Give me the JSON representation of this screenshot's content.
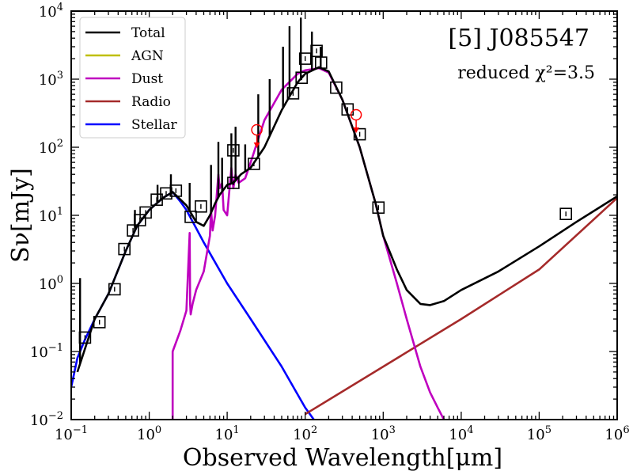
{
  "chart_data": {
    "type": "line",
    "title": "[5] J085547",
    "subtitle": "reduced χ²=3.5",
    "xlabel": "Observed Wavelength[μm]",
    "ylabel": "Sν[mJy]",
    "xscale": "log",
    "yscale": "log",
    "xlim": [
      0.1,
      1000000
    ],
    "ylim": [
      0.01,
      10000
    ],
    "x_ticks": [
      {
        "value": 0.1,
        "base": "10",
        "exp": "−1"
      },
      {
        "value": 1,
        "base": "10",
        "exp": "0"
      },
      {
        "value": 10,
        "base": "10",
        "exp": "1"
      },
      {
        "value": 100,
        "base": "10",
        "exp": "2"
      },
      {
        "value": 1000,
        "base": "10",
        "exp": "3"
      },
      {
        "value": 10000,
        "base": "10",
        "exp": "4"
      },
      {
        "value": 100000,
        "base": "10",
        "exp": "5"
      },
      {
        "value": 1000000,
        "base": "10",
        "exp": "6"
      }
    ],
    "y_ticks": [
      {
        "value": 0.01,
        "base": "10",
        "exp": "−2"
      },
      {
        "value": 0.1,
        "base": "10",
        "exp": "−1"
      },
      {
        "value": 1,
        "base": "10",
        "exp": "0"
      },
      {
        "value": 10,
        "base": "10",
        "exp": "1"
      },
      {
        "value": 100,
        "base": "10",
        "exp": "2"
      },
      {
        "value": 1000,
        "base": "10",
        "exp": "3"
      },
      {
        "value": 10000,
        "base": "10",
        "exp": "4"
      }
    ],
    "legend_position": "top-left",
    "legend": [
      {
        "name": "Total",
        "color": "#000000"
      },
      {
        "name": "AGN",
        "color": "#bfbf00"
      },
      {
        "name": "Dust",
        "color": "#bf00bf"
      },
      {
        "name": "Radio",
        "color": "#a52a2a"
      },
      {
        "name": "Stellar",
        "color": "#0000ff"
      }
    ],
    "series": [
      {
        "name": "Total",
        "color": "#000000",
        "x": [
          0.12,
          0.2,
          0.3,
          0.5,
          0.7,
          1.0,
          1.5,
          2.0,
          3.0,
          4.0,
          5.0,
          6.0,
          7.0,
          8.0,
          10,
          12,
          15,
          20,
          30,
          50,
          80,
          100,
          150,
          200,
          300,
          500,
          800,
          1000,
          1500,
          2000,
          3000,
          4000,
          6000,
          10000,
          30000,
          100000,
          300000,
          1000000
        ],
        "y": [
          0.05,
          0.3,
          0.7,
          3.0,
          7.0,
          12,
          18,
          22,
          14,
          8,
          7,
          10,
          15,
          20,
          28,
          30,
          40,
          50,
          100,
          350,
          900,
          1200,
          1500,
          1300,
          500,
          100,
          15,
          5,
          1.6,
          0.8,
          0.5,
          0.48,
          0.55,
          0.8,
          1.5,
          3.5,
          8,
          19
        ],
        "spikes": [
          {
            "x": 0.13,
            "y": 1.2
          },
          {
            "x": 0.656,
            "y": 12
          },
          {
            "x": 1.28,
            "y": 28
          },
          {
            "x": 1.9,
            "y": 40
          },
          {
            "x": 3.3,
            "y": 30
          },
          {
            "x": 6.2,
            "y": 55
          },
          {
            "x": 7.7,
            "y": 120
          },
          {
            "x": 8.6,
            "y": 70
          },
          {
            "x": 11.3,
            "y": 160
          },
          {
            "x": 12.8,
            "y": 200
          },
          {
            "x": 17,
            "y": 110
          },
          {
            "x": 25,
            "y": 600
          },
          {
            "x": 35,
            "y": 1000
          },
          {
            "x": 52,
            "y": 3000
          },
          {
            "x": 63,
            "y": 6000
          },
          {
            "x": 88,
            "y": 8000
          },
          {
            "x": 122,
            "y": 5000
          },
          {
            "x": 158,
            "y": 3000
          }
        ]
      },
      {
        "name": "Dust",
        "color": "#bf00bf",
        "x": [
          2.0,
          2.0,
          2.5,
          3.0,
          3.3,
          3.35,
          3.4,
          3.6,
          4.0,
          5.0,
          6.0,
          6.2,
          6.5,
          7.0,
          7.7,
          8.0,
          8.6,
          9.0,
          10,
          11.3,
          12,
          12.8,
          14,
          17,
          20,
          30,
          50,
          80,
          100,
          150,
          200,
          300,
          500,
          800,
          1000,
          1500,
          2000,
          3000,
          4000,
          5000,
          6000
        ],
        "y": [
          0.01,
          0.1,
          0.2,
          0.4,
          5.5,
          0.5,
          0.35,
          0.5,
          0.8,
          1.5,
          5,
          12,
          6,
          10,
          40,
          25,
          30,
          12,
          10,
          50,
          25,
          40,
          30,
          35,
          60,
          250,
          700,
          1200,
          1350,
          1450,
          1250,
          500,
          100,
          15,
          5,
          1.0,
          0.3,
          0.06,
          0.025,
          0.015,
          0.01
        ]
      },
      {
        "name": "Stellar",
        "color": "#0000ff",
        "x": [
          0.1,
          0.12,
          0.15,
          0.2,
          0.3,
          0.5,
          0.7,
          1.0,
          1.5,
          2.0,
          2.5,
          3.0,
          5.0,
          10,
          20,
          50,
          100,
          200
        ],
        "y": [
          0.03,
          0.08,
          0.15,
          0.3,
          0.7,
          3.0,
          7.0,
          12,
          18,
          22,
          16,
          12,
          4,
          1.0,
          0.3,
          0.06,
          0.015,
          0.005
        ]
      },
      {
        "name": "Radio",
        "color": "#a52a2a",
        "x": [
          100,
          1000,
          10000,
          100000,
          1000000
        ],
        "y": [
          0.012,
          0.06,
          0.3,
          1.6,
          18
        ]
      }
    ],
    "photometry": {
      "marker": "open-square",
      "points": [
        {
          "x": 0.15,
          "y": 0.16
        },
        {
          "x": 0.23,
          "y": 0.27
        },
        {
          "x": 0.36,
          "y": 0.82
        },
        {
          "x": 0.48,
          "y": 3.2
        },
        {
          "x": 0.62,
          "y": 6.0
        },
        {
          "x": 0.76,
          "y": 8.5
        },
        {
          "x": 0.9,
          "y": 11
        },
        {
          "x": 1.25,
          "y": 17
        },
        {
          "x": 1.65,
          "y": 21
        },
        {
          "x": 2.2,
          "y": 23
        },
        {
          "x": 3.4,
          "y": 9.5
        },
        {
          "x": 4.6,
          "y": 13.5
        },
        {
          "x": 12,
          "y": 90
        },
        {
          "x": 12,
          "y": 30
        },
        {
          "x": 22,
          "y": 57
        },
        {
          "x": 70,
          "y": 620
        },
        {
          "x": 90,
          "y": 1050
        },
        {
          "x": 100,
          "y": 2000
        },
        {
          "x": 140,
          "y": 2600
        },
        {
          "x": 160,
          "y": 1750
        },
        {
          "x": 250,
          "y": 750
        },
        {
          "x": 350,
          "y": 360
        },
        {
          "x": 500,
          "y": 155
        },
        {
          "x": 870,
          "y": 13
        },
        {
          "x": 220000,
          "y": 10.5
        }
      ]
    },
    "upper_limits": {
      "marker": "open-circle-with-arrow",
      "color": "#ff0000",
      "points": [
        {
          "x": 24,
          "y": 180
        },
        {
          "x": 450,
          "y": 300
        }
      ]
    }
  }
}
